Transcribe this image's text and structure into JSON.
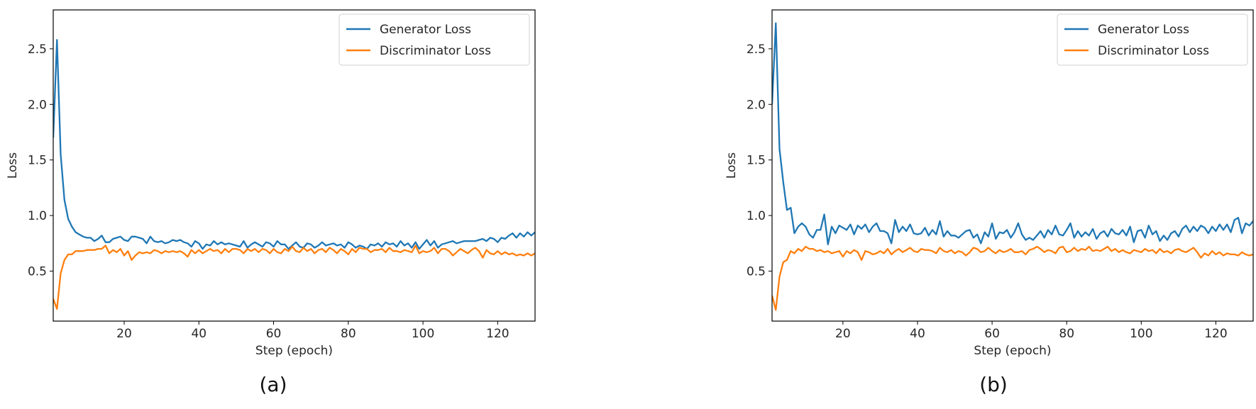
{
  "colors": {
    "generator": "#1f77b4",
    "discriminator": "#ff7f0e",
    "axis": "#000000"
  },
  "chart_data": [
    {
      "type": "line",
      "panel_label": "(a)",
      "xlabel": "Step (epoch)",
      "ylabel": "Loss",
      "xlim": [
        1,
        130
      ],
      "ylim": [
        0.05,
        2.85
      ],
      "xticks": [
        20,
        40,
        60,
        80,
        100,
        120
      ],
      "yticks": [
        0.5,
        1.0,
        1.5,
        2.0,
        2.5
      ],
      "xtick_labels": [
        "20",
        "40",
        "60",
        "80",
        "100",
        "120"
      ],
      "ytick_labels": [
        "0.5",
        "1.0",
        "1.5",
        "2.0",
        "2.5"
      ],
      "legend_position": "top-right",
      "series": [
        {
          "name": "Generator Loss",
          "color": "#1f77b4",
          "values": [
            1.7,
            2.58,
            1.55,
            1.14,
            0.97,
            0.9,
            0.85,
            0.83,
            0.81,
            0.8,
            0.8,
            0.77,
            0.79,
            0.82,
            0.76,
            0.76,
            0.79,
            0.8,
            0.81,
            0.78,
            0.77,
            0.81,
            0.81,
            0.8,
            0.79,
            0.75,
            0.81,
            0.77,
            0.76,
            0.77,
            0.75,
            0.76,
            0.78,
            0.77,
            0.78,
            0.76,
            0.75,
            0.72,
            0.77,
            0.75,
            0.7,
            0.74,
            0.73,
            0.77,
            0.74,
            0.76,
            0.74,
            0.75,
            0.74,
            0.73,
            0.72,
            0.77,
            0.71,
            0.74,
            0.76,
            0.74,
            0.72,
            0.76,
            0.75,
            0.72,
            0.77,
            0.74,
            0.74,
            0.7,
            0.73,
            0.76,
            0.72,
            0.71,
            0.75,
            0.74,
            0.71,
            0.73,
            0.76,
            0.73,
            0.74,
            0.75,
            0.73,
            0.74,
            0.71,
            0.76,
            0.74,
            0.71,
            0.73,
            0.72,
            0.7,
            0.74,
            0.73,
            0.75,
            0.72,
            0.76,
            0.74,
            0.75,
            0.72,
            0.77,
            0.73,
            0.75,
            0.71,
            0.76,
            0.7,
            0.74,
            0.78,
            0.73,
            0.77,
            0.71,
            0.74,
            0.75,
            0.76,
            0.77,
            0.75,
            0.76,
            0.77,
            0.77,
            0.77,
            0.77,
            0.78,
            0.79,
            0.77,
            0.8,
            0.79,
            0.76,
            0.8,
            0.79,
            0.82,
            0.84,
            0.8,
            0.84,
            0.81,
            0.85,
            0.82,
            0.85
          ]
        },
        {
          "name": "Discriminator Loss",
          "color": "#ff7f0e",
          "values": [
            0.25,
            0.16,
            0.48,
            0.6,
            0.65,
            0.65,
            0.68,
            0.68,
            0.68,
            0.69,
            0.69,
            0.69,
            0.7,
            0.7,
            0.73,
            0.66,
            0.69,
            0.67,
            0.7,
            0.64,
            0.68,
            0.6,
            0.64,
            0.67,
            0.66,
            0.67,
            0.66,
            0.69,
            0.68,
            0.66,
            0.68,
            0.67,
            0.68,
            0.67,
            0.68,
            0.66,
            0.63,
            0.69,
            0.66,
            0.69,
            0.66,
            0.68,
            0.7,
            0.68,
            0.69,
            0.66,
            0.7,
            0.67,
            0.7,
            0.7,
            0.69,
            0.66,
            0.7,
            0.68,
            0.7,
            0.67,
            0.7,
            0.69,
            0.66,
            0.7,
            0.67,
            0.66,
            0.7,
            0.68,
            0.72,
            0.68,
            0.67,
            0.71,
            0.68,
            0.7,
            0.66,
            0.69,
            0.7,
            0.67,
            0.71,
            0.69,
            0.66,
            0.7,
            0.68,
            0.65,
            0.7,
            0.67,
            0.71,
            0.7,
            0.7,
            0.67,
            0.69,
            0.69,
            0.7,
            0.67,
            0.71,
            0.68,
            0.68,
            0.67,
            0.69,
            0.68,
            0.67,
            0.73,
            0.66,
            0.68,
            0.67,
            0.68,
            0.71,
            0.66,
            0.7,
            0.7,
            0.68,
            0.64,
            0.67,
            0.7,
            0.68,
            0.66,
            0.69,
            0.71,
            0.68,
            0.62,
            0.69,
            0.66,
            0.65,
            0.68,
            0.65,
            0.67,
            0.65,
            0.66,
            0.64,
            0.65,
            0.64,
            0.66,
            0.64,
            0.66
          ]
        }
      ]
    },
    {
      "type": "line",
      "panel_label": "(b)",
      "xlabel": "Step (epoch)",
      "ylabel": "Loss",
      "xlim": [
        1,
        130
      ],
      "ylim": [
        0.05,
        2.85
      ],
      "xticks": [
        20,
        40,
        60,
        80,
        100,
        120
      ],
      "yticks": [
        0.5,
        1.0,
        1.5,
        2.0,
        2.5
      ],
      "xtick_labels": [
        "20",
        "40",
        "60",
        "80",
        "100",
        "120"
      ],
      "ytick_labels": [
        "0.5",
        "1.0",
        "1.5",
        "2.0",
        "2.5"
      ],
      "legend_position": "top-right",
      "series": [
        {
          "name": "Generator Loss",
          "color": "#1f77b4",
          "values": [
            2.0,
            2.73,
            1.6,
            1.3,
            1.05,
            1.07,
            0.84,
            0.9,
            0.93,
            0.9,
            0.83,
            0.8,
            0.87,
            0.87,
            1.01,
            0.74,
            0.9,
            0.84,
            0.91,
            0.89,
            0.87,
            0.92,
            0.83,
            0.91,
            0.88,
            0.92,
            0.85,
            0.9,
            0.93,
            0.86,
            0.86,
            0.84,
            0.75,
            0.96,
            0.85,
            0.9,
            0.86,
            0.92,
            0.84,
            0.83,
            0.84,
            0.89,
            0.82,
            0.87,
            0.83,
            0.95,
            0.81,
            0.86,
            0.82,
            0.82,
            0.8,
            0.83,
            0.86,
            0.87,
            0.8,
            0.83,
            0.75,
            0.85,
            0.81,
            0.93,
            0.79,
            0.85,
            0.84,
            0.87,
            0.8,
            0.85,
            0.93,
            0.83,
            0.78,
            0.8,
            0.78,
            0.82,
            0.86,
            0.8,
            0.87,
            0.83,
            0.91,
            0.83,
            0.82,
            0.87,
            0.93,
            0.8,
            0.86,
            0.81,
            0.85,
            0.82,
            0.88,
            0.79,
            0.84,
            0.86,
            0.81,
            0.88,
            0.84,
            0.83,
            0.87,
            0.82,
            0.9,
            0.76,
            0.86,
            0.87,
            0.8,
            0.91,
            0.83,
            0.86,
            0.77,
            0.82,
            0.78,
            0.84,
            0.86,
            0.81,
            0.88,
            0.91,
            0.85,
            0.9,
            0.86,
            0.91,
            0.89,
            0.84,
            0.9,
            0.86,
            0.92,
            0.87,
            0.92,
            0.85,
            0.96,
            0.98,
            0.84,
            0.93,
            0.91,
            0.95
          ]
        },
        {
          "name": "Discriminator Loss",
          "color": "#ff7f0e",
          "values": [
            0.28,
            0.15,
            0.45,
            0.58,
            0.6,
            0.68,
            0.66,
            0.7,
            0.68,
            0.72,
            0.7,
            0.7,
            0.68,
            0.69,
            0.67,
            0.68,
            0.66,
            0.67,
            0.68,
            0.63,
            0.68,
            0.66,
            0.69,
            0.67,
            0.6,
            0.68,
            0.67,
            0.65,
            0.66,
            0.68,
            0.66,
            0.7,
            0.65,
            0.68,
            0.7,
            0.67,
            0.69,
            0.71,
            0.68,
            0.67,
            0.7,
            0.69,
            0.69,
            0.68,
            0.66,
            0.71,
            0.68,
            0.67,
            0.69,
            0.66,
            0.68,
            0.67,
            0.64,
            0.67,
            0.71,
            0.7,
            0.67,
            0.68,
            0.71,
            0.68,
            0.66,
            0.69,
            0.67,
            0.68,
            0.7,
            0.67,
            0.67,
            0.68,
            0.65,
            0.69,
            0.7,
            0.72,
            0.7,
            0.67,
            0.69,
            0.68,
            0.66,
            0.71,
            0.72,
            0.67,
            0.68,
            0.71,
            0.68,
            0.7,
            0.69,
            0.72,
            0.68,
            0.69,
            0.68,
            0.7,
            0.72,
            0.68,
            0.7,
            0.67,
            0.69,
            0.67,
            0.66,
            0.69,
            0.68,
            0.67,
            0.7,
            0.68,
            0.69,
            0.66,
            0.7,
            0.67,
            0.68,
            0.66,
            0.69,
            0.7,
            0.68,
            0.67,
            0.69,
            0.71,
            0.67,
            0.62,
            0.66,
            0.64,
            0.68,
            0.65,
            0.67,
            0.64,
            0.66,
            0.65,
            0.65,
            0.64,
            0.67,
            0.65,
            0.64,
            0.65
          ]
        }
      ]
    }
  ]
}
